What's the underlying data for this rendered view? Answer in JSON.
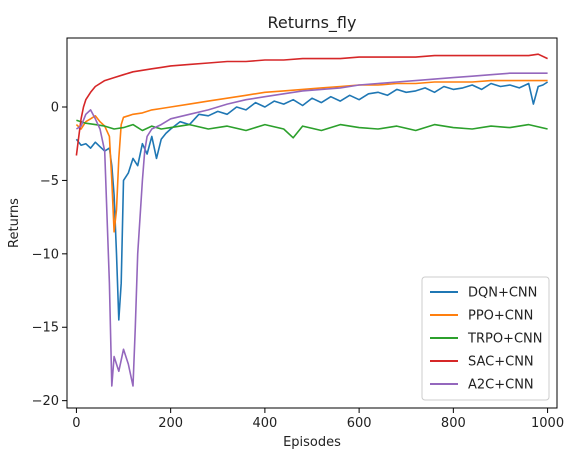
{
  "chart_data": {
    "type": "line",
    "title": "Returns_fly",
    "xlabel": "Episodes",
    "ylabel": "Returns",
    "xlim": [
      -20,
      1020
    ],
    "ylim": [
      -20.5,
      4.7
    ],
    "xticks": [
      0,
      200,
      400,
      600,
      800,
      1000
    ],
    "yticks": [
      -20,
      -15,
      -10,
      -5,
      0
    ],
    "grid": false,
    "legend_position": "lower-right",
    "series": [
      {
        "name": "DQN+CNN",
        "color": "#1f77b4",
        "x": [
          0,
          10,
          20,
          30,
          40,
          50,
          60,
          70,
          75,
          80,
          85,
          90,
          95,
          100,
          110,
          120,
          130,
          140,
          150,
          160,
          170,
          180,
          190,
          200,
          220,
          240,
          260,
          280,
          300,
          320,
          340,
          360,
          380,
          400,
          420,
          440,
          460,
          480,
          500,
          520,
          540,
          560,
          580,
          600,
          620,
          640,
          660,
          680,
          700,
          720,
          740,
          760,
          780,
          800,
          820,
          840,
          860,
          880,
          900,
          920,
          940,
          960,
          970,
          980,
          990,
          1000
        ],
        "y": [
          -2.2,
          -2.6,
          -2.5,
          -2.8,
          -2.4,
          -2.7,
          -3.0,
          -2.8,
          -4.0,
          -6.0,
          -10.0,
          -14.5,
          -12.0,
          -5.0,
          -4.5,
          -3.5,
          -4.0,
          -2.5,
          -3.2,
          -2.0,
          -3.5,
          -2.2,
          -1.8,
          -1.5,
          -1.0,
          -1.2,
          -0.5,
          -0.6,
          -0.3,
          -0.5,
          0.0,
          -0.2,
          0.3,
          0.0,
          0.4,
          0.2,
          0.5,
          0.1,
          0.6,
          0.3,
          0.7,
          0.4,
          0.8,
          0.5,
          0.9,
          1.0,
          0.8,
          1.2,
          1.0,
          1.1,
          1.3,
          1.0,
          1.4,
          1.2,
          1.3,
          1.5,
          1.2,
          1.6,
          1.4,
          1.5,
          1.3,
          1.6,
          0.2,
          1.4,
          1.5,
          1.7
        ]
      },
      {
        "name": "PPO+CNN",
        "color": "#ff7f0e",
        "x": [
          0,
          10,
          20,
          30,
          40,
          50,
          60,
          70,
          75,
          80,
          85,
          90,
          95,
          100,
          110,
          120,
          140,
          160,
          180,
          200,
          240,
          280,
          320,
          360,
          400,
          440,
          480,
          520,
          560,
          600,
          640,
          680,
          720,
          760,
          800,
          840,
          880,
          920,
          960,
          1000
        ],
        "y": [
          -1.2,
          -1.5,
          -1.0,
          -0.8,
          -0.6,
          -1.0,
          -1.3,
          -2.0,
          -5.0,
          -8.5,
          -7.0,
          -3.5,
          -1.2,
          -0.7,
          -0.6,
          -0.5,
          -0.4,
          -0.2,
          -0.1,
          0.0,
          0.2,
          0.4,
          0.6,
          0.8,
          1.0,
          1.1,
          1.2,
          1.3,
          1.4,
          1.5,
          1.5,
          1.6,
          1.6,
          1.7,
          1.7,
          1.7,
          1.8,
          1.8,
          1.8,
          1.8
        ]
      },
      {
        "name": "TRPO+CNN",
        "color": "#2ca02c",
        "x": [
          0,
          10,
          20,
          40,
          60,
          80,
          100,
          120,
          140,
          160,
          180,
          200,
          240,
          280,
          320,
          360,
          400,
          440,
          460,
          480,
          520,
          560,
          600,
          640,
          680,
          720,
          760,
          800,
          840,
          880,
          920,
          960,
          1000
        ],
        "y": [
          -0.9,
          -1.0,
          -1.1,
          -1.2,
          -1.3,
          -1.5,
          -1.4,
          -1.2,
          -1.6,
          -1.3,
          -1.5,
          -1.4,
          -1.2,
          -1.5,
          -1.3,
          -1.6,
          -1.2,
          -1.5,
          -2.1,
          -1.3,
          -1.6,
          -1.2,
          -1.4,
          -1.5,
          -1.3,
          -1.6,
          -1.2,
          -1.4,
          -1.5,
          -1.3,
          -1.4,
          -1.2,
          -1.5
        ]
      },
      {
        "name": "SAC+CNN",
        "color": "#d62728",
        "x": [
          0,
          5,
          10,
          15,
          20,
          30,
          40,
          60,
          80,
          100,
          120,
          140,
          160,
          180,
          200,
          240,
          280,
          320,
          360,
          400,
          440,
          480,
          520,
          560,
          600,
          640,
          680,
          720,
          760,
          800,
          840,
          880,
          920,
          960,
          980,
          1000
        ],
        "y": [
          -3.3,
          -2.0,
          -0.8,
          0.0,
          0.5,
          1.0,
          1.4,
          1.8,
          2.0,
          2.2,
          2.4,
          2.5,
          2.6,
          2.7,
          2.8,
          2.9,
          3.0,
          3.1,
          3.1,
          3.2,
          3.2,
          3.3,
          3.3,
          3.3,
          3.4,
          3.4,
          3.4,
          3.4,
          3.5,
          3.5,
          3.5,
          3.5,
          3.5,
          3.5,
          3.6,
          3.3
        ]
      },
      {
        "name": "A2C+CNN",
        "color": "#9467bd",
        "x": [
          0,
          10,
          20,
          30,
          40,
          50,
          60,
          70,
          75,
          80,
          90,
          100,
          110,
          120,
          125,
          130,
          140,
          145,
          150,
          160,
          180,
          200,
          240,
          280,
          320,
          360,
          400,
          440,
          480,
          520,
          560,
          600,
          640,
          680,
          720,
          760,
          800,
          840,
          880,
          920,
          960,
          1000
        ],
        "y": [
          -1.5,
          -1.3,
          -0.5,
          -0.2,
          -0.8,
          -1.5,
          -3.0,
          -12.0,
          -19.0,
          -17.0,
          -18.0,
          -16.5,
          -17.5,
          -19.0,
          -15.0,
          -10.0,
          -5.0,
          -3.0,
          -2.0,
          -1.5,
          -1.2,
          -0.8,
          -0.5,
          -0.2,
          0.2,
          0.5,
          0.7,
          0.9,
          1.1,
          1.2,
          1.3,
          1.5,
          1.6,
          1.7,
          1.8,
          1.9,
          2.0,
          2.1,
          2.2,
          2.3,
          2.3,
          2.3
        ]
      }
    ]
  }
}
